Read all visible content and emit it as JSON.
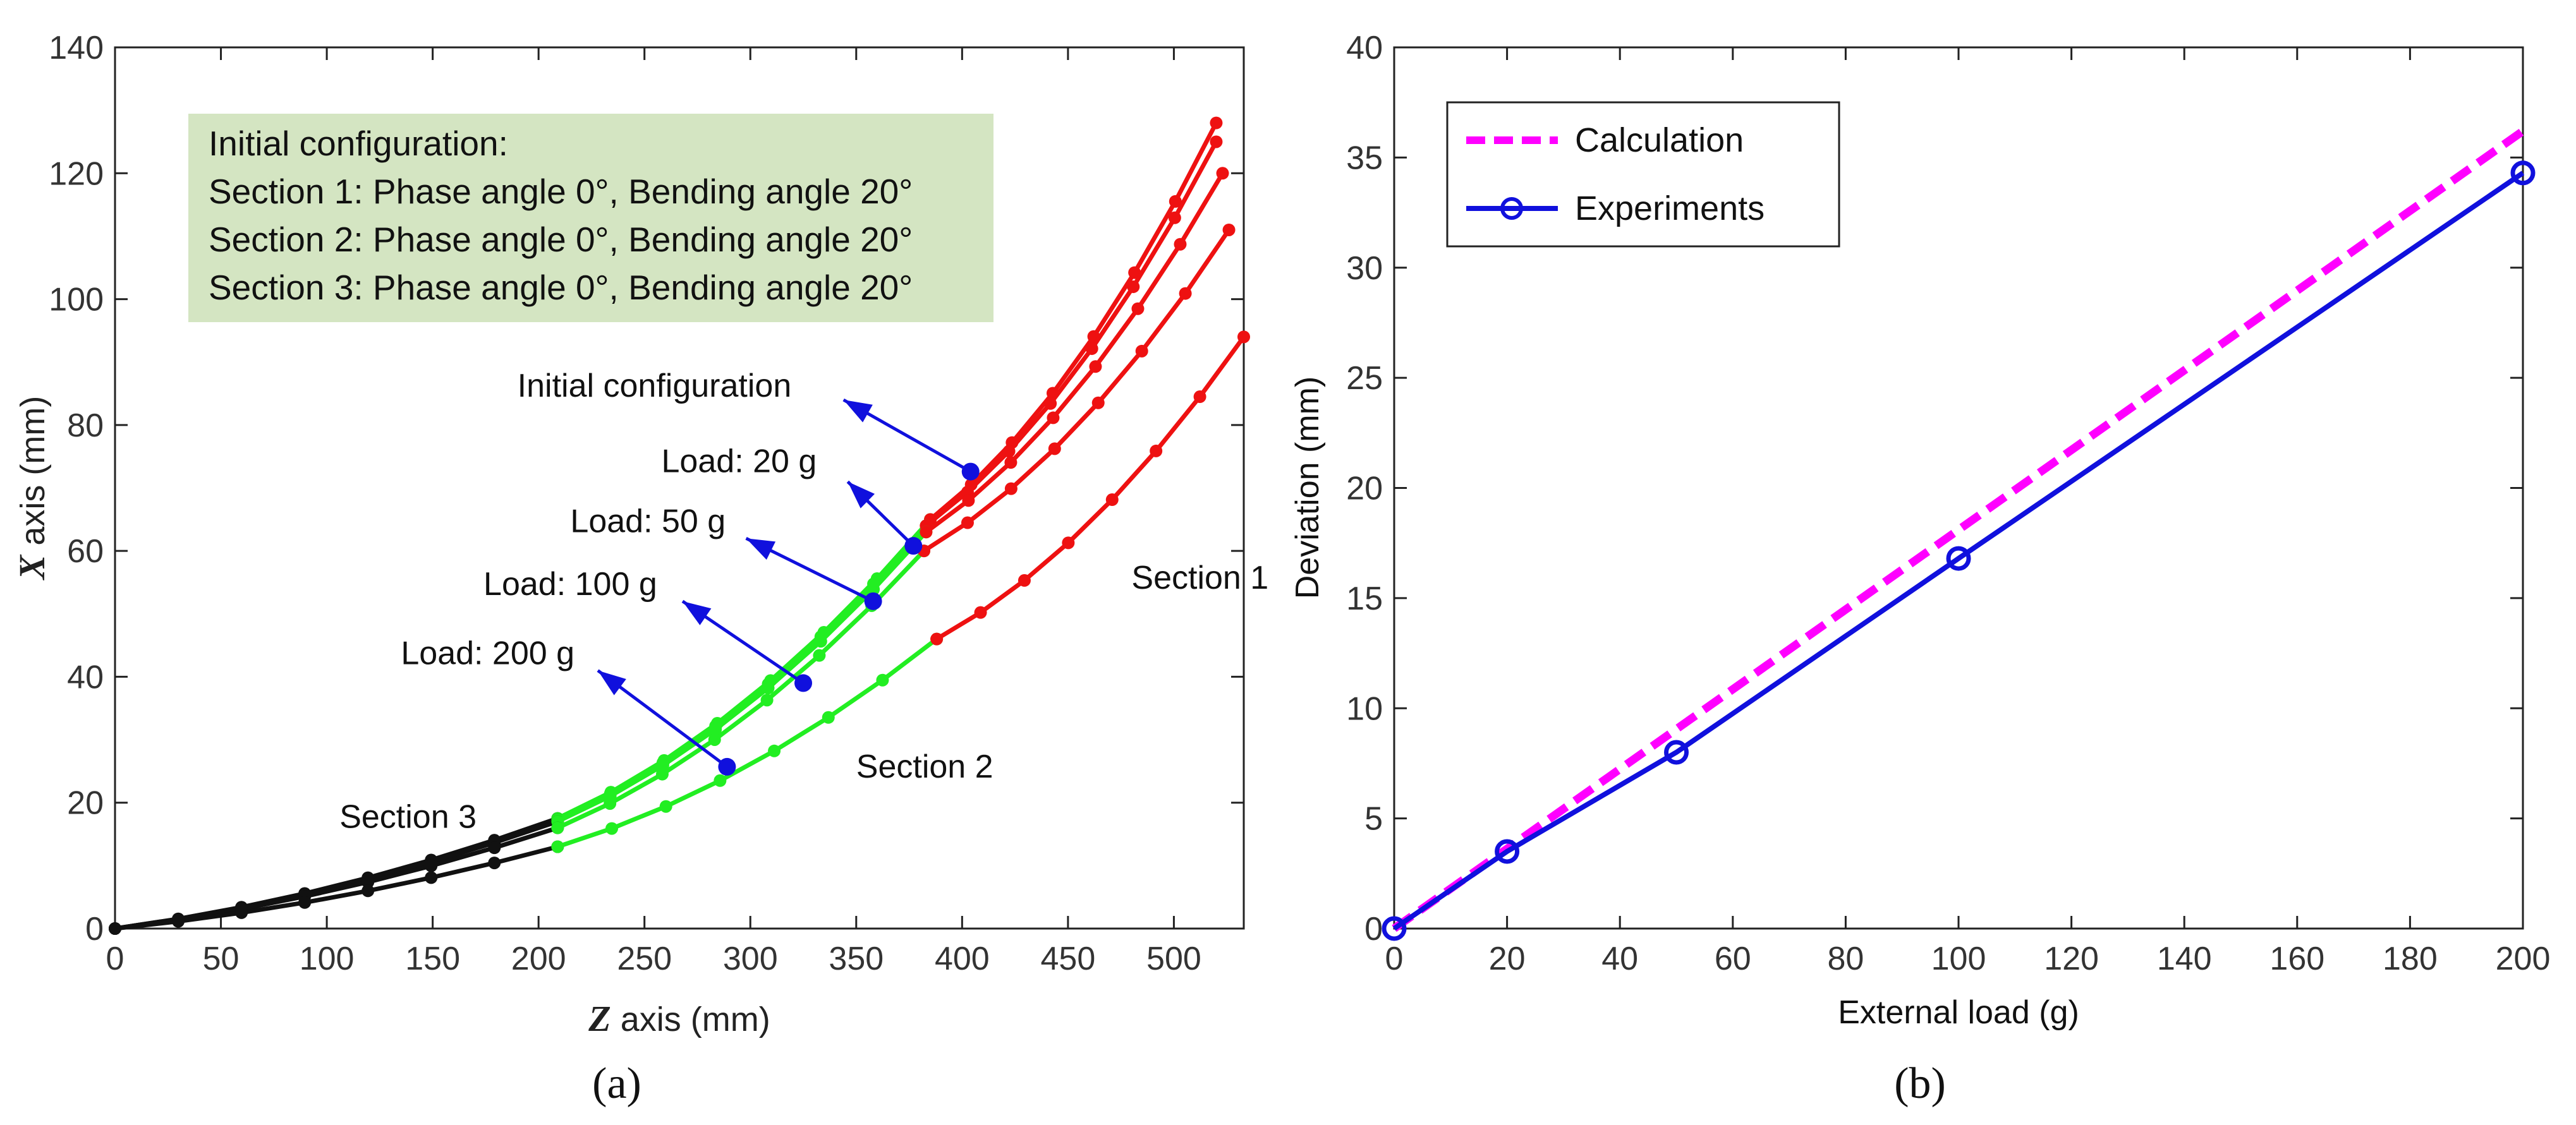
{
  "chart_data": [
    {
      "type": "line",
      "panel_label": "(a)",
      "xlabel": {
        "var": "Z",
        "rest": " axis (mm)"
      },
      "ylabel": {
        "var": "X",
        "rest": " axis (mm)"
      },
      "xlim": [
        0,
        533
      ],
      "ylim": [
        0,
        140
      ],
      "xticks": [
        0,
        50,
        100,
        150,
        200,
        250,
        300,
        350,
        400,
        450,
        500
      ],
      "yticks": [
        0,
        20,
        40,
        60,
        80,
        100,
        120,
        140
      ],
      "grid": false,
      "info_box": [
        "Initial configuration:",
        "Section 1: Phase angle 0°, Bending angle 20°",
        "Section 2: Phase angle 0°, Bending angle 20°",
        "Section 3: Phase angle 0°, Bending angle 20°"
      ],
      "section_labels": [
        {
          "text": "Section 1",
          "x": 480,
          "y": 54
        },
        {
          "text": "Section 2",
          "x": 350,
          "y": 24
        },
        {
          "text": "Section 3",
          "x": 106,
          "y": 16
        }
      ],
      "colors": {
        "section1": "#ee1111",
        "section2": "#22ee22",
        "section3": "#111111",
        "marker": "#1010dd",
        "arrow": "#1010dd"
      },
      "curves": [
        {
          "name": "Initial configuration",
          "ends": [
            [
              0,
              0
            ],
            [
              209,
              17.5
            ],
            [
              385,
              65
            ],
            [
              520,
              128
            ]
          ],
          "pivot": [
            404,
            72.6
          ]
        },
        {
          "name": "Load: 20 g",
          "ends": [
            [
              0,
              0
            ],
            [
              209,
              17.3
            ],
            [
              383,
              64
            ],
            [
              520,
              125
            ]
          ],
          "pivot": [
            377,
            60.8
          ]
        },
        {
          "name": "Load: 50 g",
          "ends": [
            [
              0,
              0
            ],
            [
              209,
              17
            ],
            [
              383,
              63
            ],
            [
              523,
              120
            ]
          ],
          "pivot": [
            358,
            52
          ]
        },
        {
          "name": "Load: 100 g",
          "ends": [
            [
              0,
              0
            ],
            [
              209,
              16
            ],
            [
              382,
              60
            ],
            [
              526,
              111
            ]
          ],
          "pivot": [
            325,
            39
          ]
        },
        {
          "name": "Load: 200 g",
          "ends": [
            [
              0,
              0
            ],
            [
              209,
              13
            ],
            [
              388,
              46
            ],
            [
              533,
              94
            ]
          ],
          "pivot": [
            289,
            25.7
          ]
        }
      ],
      "annotations": [
        {
          "text": "Initial configuration",
          "x": 190,
          "y": 84.5,
          "arrow_from": [
            344,
            84
          ],
          "arrow_to": [
            404,
            72.6
          ]
        },
        {
          "text": "Load: 20 g",
          "x": 258,
          "y": 72.5,
          "arrow_from": [
            346,
            71
          ],
          "arrow_to": [
            377,
            60.8
          ]
        },
        {
          "text": "Load: 50 g",
          "x": 215,
          "y": 63,
          "arrow_from": [
            298,
            62
          ],
          "arrow_to": [
            358,
            52
          ]
        },
        {
          "text": "Load: 100 g",
          "x": 174,
          "y": 53,
          "arrow_from": [
            268,
            52
          ],
          "arrow_to": [
            325,
            39
          ]
        },
        {
          "text": "Load: 200 g",
          "x": 135,
          "y": 42,
          "arrow_from": [
            228,
            41
          ],
          "arrow_to": [
            289,
            25.7
          ]
        }
      ]
    },
    {
      "type": "line",
      "panel_label": "(b)",
      "xlabel": "External load (g)",
      "ylabel": "Deviation (mm)",
      "xlim": [
        0,
        200
      ],
      "ylim": [
        0,
        40
      ],
      "xticks": [
        0,
        20,
        40,
        60,
        80,
        100,
        120,
        140,
        160,
        180,
        200
      ],
      "yticks": [
        0,
        5,
        10,
        15,
        20,
        25,
        30,
        35,
        40
      ],
      "grid": false,
      "legend": "top-left",
      "series": [
        {
          "name": "Calculation",
          "color": "#ff00ff",
          "style": "dashed",
          "x": [
            0,
            200
          ],
          "y": [
            0,
            36.2
          ]
        },
        {
          "name": "Experiments",
          "color": "#1010dd",
          "style": "solid-circle",
          "x": [
            0,
            20,
            50,
            100,
            200
          ],
          "y": [
            0,
            3.5,
            8.0,
            16.8,
            34.3
          ]
        }
      ]
    }
  ]
}
